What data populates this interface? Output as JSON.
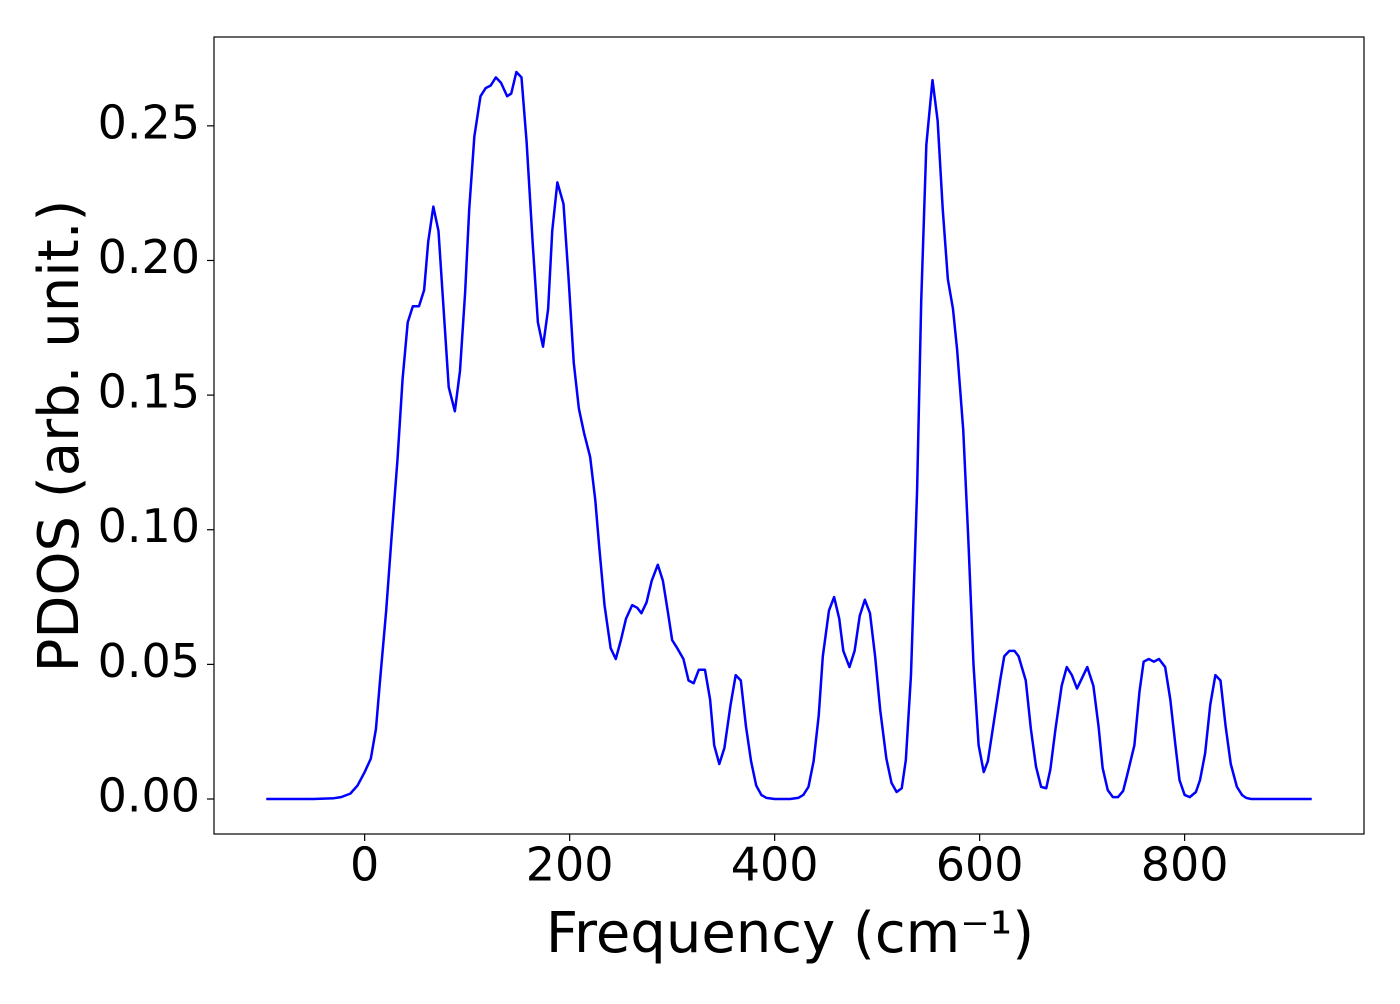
{
  "chart_data": {
    "type": "line",
    "xlabel": "Frequency (cm⁻¹)",
    "ylabel": "PDOS (arb. unit.)",
    "color": "#0000ff",
    "x": [
      -96,
      -50,
      -30,
      -23,
      -14,
      -7,
      0,
      6,
      11,
      15,
      21,
      26,
      32,
      37,
      42,
      47,
      53,
      58,
      62,
      67,
      72,
      77,
      82,
      88,
      93,
      98,
      102,
      107,
      113,
      118,
      123,
      128,
      133,
      139,
      143,
      148,
      153,
      158,
      164,
      169,
      174,
      179,
      183,
      188,
      194,
      199,
      204,
      209,
      214,
      220,
      225,
      229,
      234,
      240,
      245,
      250,
      255,
      261,
      266,
      270,
      275,
      280,
      286,
      291,
      296,
      300,
      305,
      311,
      316,
      321,
      326,
      332,
      337,
      341,
      346,
      351,
      357,
      362,
      367,
      372,
      377,
      382,
      387,
      392,
      400,
      415,
      423,
      428,
      433,
      438,
      443,
      447,
      453,
      458,
      463,
      467,
      473,
      478,
      483,
      488,
      493,
      498,
      503,
      509,
      514,
      519,
      524,
      528,
      533,
      539,
      543,
      548,
      554,
      559,
      564,
      569,
      574,
      578,
      584,
      589,
      594,
      599,
      604,
      608,
      614,
      620,
      624,
      629,
      634,
      638,
      645,
      650,
      655,
      660,
      665,
      669,
      674,
      680,
      685,
      690,
      695,
      700,
      705,
      711,
      716,
      720,
      725,
      730,
      735,
      740,
      744,
      751,
      756,
      760,
      765,
      770,
      775,
      781,
      786,
      791,
      795,
      800,
      805,
      811,
      815,
      820,
      825,
      830,
      835,
      840,
      845,
      851,
      856,
      860,
      865,
      924
    ],
    "values": [
      0,
      0,
      0.0003,
      0.0007,
      0.002,
      0.005,
      0.01,
      0.015,
      0.026,
      0.044,
      0.07,
      0.096,
      0.126,
      0.156,
      0.177,
      0.183,
      0.183,
      0.189,
      0.207,
      0.22,
      0.211,
      0.182,
      0.153,
      0.144,
      0.159,
      0.188,
      0.219,
      0.246,
      0.261,
      0.264,
      0.265,
      0.268,
      0.266,
      0.261,
      0.262,
      0.27,
      0.268,
      0.244,
      0.206,
      0.177,
      0.168,
      0.182,
      0.211,
      0.229,
      0.221,
      0.193,
      0.162,
      0.145,
      0.136,
      0.127,
      0.111,
      0.093,
      0.072,
      0.056,
      0.052,
      0.059,
      0.067,
      0.072,
      0.071,
      0.069,
      0.073,
      0.081,
      0.087,
      0.081,
      0.069,
      0.059,
      0.056,
      0.052,
      0.044,
      0.043,
      0.048,
      0.048,
      0.037,
      0.02,
      0.013,
      0.019,
      0.035,
      0.046,
      0.044,
      0.027,
      0.014,
      0.005,
      0.0015,
      0.0004,
      0,
      0,
      0.0004,
      0.0015,
      0.0045,
      0.014,
      0.031,
      0.053,
      0.07,
      0.075,
      0.067,
      0.055,
      0.049,
      0.055,
      0.068,
      0.074,
      0.069,
      0.053,
      0.033,
      0.015,
      0.006,
      0.0026,
      0.004,
      0.0145,
      0.046,
      0.115,
      0.185,
      0.243,
      0.267,
      0.252,
      0.219,
      0.193,
      0.182,
      0.167,
      0.137,
      0.096,
      0.05,
      0.02,
      0.01,
      0.014,
      0.029,
      0.044,
      0.053,
      0.055,
      0.055,
      0.053,
      0.044,
      0.026,
      0.012,
      0.0045,
      0.004,
      0.011,
      0.026,
      0.042,
      0.049,
      0.046,
      0.041,
      0.045,
      0.049,
      0.042,
      0.027,
      0.0115,
      0.0033,
      0.0007,
      0.0007,
      0.003,
      0.009,
      0.02,
      0.04,
      0.051,
      0.052,
      0.051,
      0.052,
      0.049,
      0.037,
      0.02,
      0.007,
      0.0015,
      0.0007,
      0.0026,
      0.007,
      0.017,
      0.035,
      0.046,
      0.044,
      0.027,
      0.013,
      0.0045,
      0.0015,
      0.0004,
      0,
      0
    ],
    "xlim": [
      -147,
      975
    ],
    "ylim": [
      -0.013,
      0.283
    ],
    "xticks": [
      0,
      200,
      400,
      600,
      800
    ],
    "yticks": [
      {
        "value": 0,
        "label": "0.00"
      },
      0.05,
      {
        "value": 0.1,
        "label": "0.10"
      },
      0.15,
      {
        "value": 0.2,
        "label": "0.20"
      },
      0.25
    ]
  }
}
